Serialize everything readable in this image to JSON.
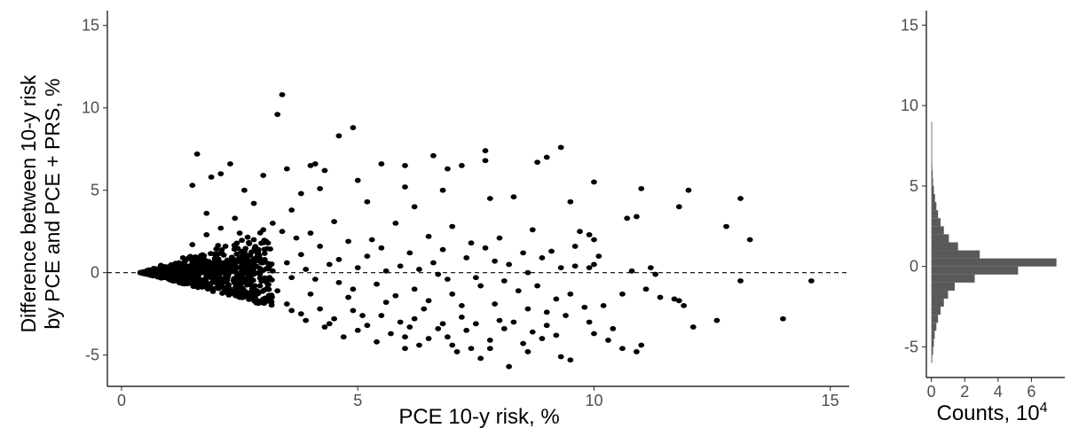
{
  "chart_data": [
    {
      "type": "scatter",
      "title": "",
      "xlabel": "PCE 10-y risk, %",
      "ylabel_lines": [
        "Difference between 10-y risk",
        "by PCE and PCE + PRS, %"
      ],
      "xlim": [
        -0.3,
        15.4
      ],
      "ylim": [
        -6.9,
        15.9
      ],
      "x_ticks": [
        0,
        5,
        10,
        15
      ],
      "y_ticks": [
        -5,
        0,
        5,
        10,
        15
      ],
      "grid": false,
      "reference_line": {
        "y": 0,
        "style": "dashed"
      },
      "point_color": "#000000",
      "cluster": {
        "description_of_dense_region": "many points fanning from x~0.4,y~0",
        "x_range": [
          0.4,
          3.2
        ]
      },
      "points": [
        [
          3.4,
          10.8
        ],
        [
          3.3,
          9.6
        ],
        [
          4.9,
          8.8
        ],
        [
          4.6,
          8.3
        ],
        [
          9.3,
          7.6
        ],
        [
          7.7,
          7.4
        ],
        [
          1.6,
          7.2
        ],
        [
          6.6,
          7.1
        ],
        [
          7.7,
          6.8
        ],
        [
          8.8,
          6.7
        ],
        [
          9.0,
          7.0
        ],
        [
          4.0,
          6.5
        ],
        [
          4.1,
          6.6
        ],
        [
          2.3,
          6.6
        ],
        [
          5.5,
          6.6
        ],
        [
          6.0,
          6.5
        ],
        [
          7.2,
          6.5
        ],
        [
          6.9,
          6.3
        ],
        [
          4.3,
          6.2
        ],
        [
          3.5,
          6.3
        ],
        [
          2.1,
          6.0
        ],
        [
          1.9,
          5.8
        ],
        [
          10.0,
          5.5
        ],
        [
          11.0,
          5.1
        ],
        [
          12.0,
          5.0
        ],
        [
          3.0,
          5.9
        ],
        [
          5.0,
          5.6
        ],
        [
          4.2,
          5.1
        ],
        [
          1.5,
          5.3
        ],
        [
          6.0,
          5.2
        ],
        [
          6.8,
          5.0
        ],
        [
          2.6,
          5.0
        ],
        [
          3.8,
          4.8
        ],
        [
          7.8,
          4.5
        ],
        [
          8.3,
          4.6
        ],
        [
          13.1,
          4.5
        ],
        [
          9.5,
          4.3
        ],
        [
          11.8,
          4.0
        ],
        [
          2.8,
          4.2
        ],
        [
          5.2,
          4.3
        ],
        [
          6.2,
          4.0
        ],
        [
          3.6,
          3.8
        ],
        [
          10.7,
          3.3
        ],
        [
          10.9,
          3.4
        ],
        [
          12.8,
          2.8
        ],
        [
          9.7,
          2.5
        ],
        [
          13.3,
          2.0
        ],
        [
          9.9,
          2.3
        ],
        [
          10.0,
          2.0
        ],
        [
          8.7,
          2.6
        ],
        [
          7.0,
          2.8
        ],
        [
          5.8,
          3.0
        ],
        [
          4.5,
          3.1
        ],
        [
          3.2,
          3.0
        ],
        [
          2.4,
          3.3
        ],
        [
          1.8,
          3.6
        ],
        [
          6.5,
          2.2
        ],
        [
          8.0,
          2.1
        ],
        [
          9.6,
          1.6
        ],
        [
          9.1,
          1.3
        ],
        [
          5.3,
          2.0
        ],
        [
          4.0,
          2.4
        ],
        [
          3.4,
          2.5
        ],
        [
          7.4,
          1.8
        ],
        [
          8.5,
          1.2
        ],
        [
          10.1,
          1.0
        ],
        [
          10.0,
          0.5
        ],
        [
          9.9,
          0.3
        ],
        [
          11.2,
          0.3
        ],
        [
          9.6,
          0.4
        ],
        [
          9.3,
          0.3
        ],
        [
          10.8,
          0.1
        ],
        [
          13.1,
          -0.5
        ],
        [
          14.6,
          -0.5
        ],
        [
          11.3,
          -0.1
        ],
        [
          8.6,
          0.0
        ],
        [
          7.9,
          0.7
        ],
        [
          6.6,
          0.6
        ],
        [
          6.3,
          0.2
        ],
        [
          5.2,
          1.0
        ],
        [
          4.6,
          0.8
        ],
        [
          3.8,
          1.1
        ],
        [
          2.9,
          1.4
        ],
        [
          2.2,
          1.6
        ],
        [
          1.5,
          1.7
        ],
        [
          6.9,
          -0.4
        ],
        [
          7.6,
          -0.8
        ],
        [
          8.4,
          -1.1
        ],
        [
          9.5,
          -1.3
        ],
        [
          11.1,
          -1.0
        ],
        [
          11.7,
          -1.6
        ],
        [
          11.8,
          -1.7
        ],
        [
          11.9,
          -2.0
        ],
        [
          12.1,
          -3.3
        ],
        [
          12.6,
          -2.9
        ],
        [
          14.0,
          -2.8
        ],
        [
          9.8,
          -2.1
        ],
        [
          9.0,
          -2.4
        ],
        [
          8.0,
          -2.9
        ],
        [
          7.2,
          -2.7
        ],
        [
          6.4,
          -2.2
        ],
        [
          5.6,
          -1.8
        ],
        [
          4.8,
          -1.5
        ],
        [
          4.0,
          -1.3
        ],
        [
          3.3,
          -1.1
        ],
        [
          2.8,
          -1.2
        ],
        [
          2.2,
          -0.9
        ],
        [
          1.6,
          -0.6
        ],
        [
          1.0,
          -0.4
        ],
        [
          5.1,
          -2.6
        ],
        [
          5.9,
          -3.0
        ],
        [
          6.7,
          -3.4
        ],
        [
          7.3,
          -3.5
        ],
        [
          8.1,
          -3.4
        ],
        [
          8.7,
          -3.6
        ],
        [
          9.2,
          -3.8
        ],
        [
          10.0,
          -3.7
        ],
        [
          10.3,
          -4.1
        ],
        [
          10.6,
          -4.6
        ],
        [
          10.9,
          -4.8
        ],
        [
          11.0,
          -4.4
        ],
        [
          9.3,
          -5.1
        ],
        [
          9.5,
          -5.3
        ],
        [
          8.2,
          -5.7
        ],
        [
          7.6,
          -5.2
        ],
        [
          6.0,
          -4.6
        ],
        [
          6.3,
          -4.4
        ],
        [
          5.4,
          -4.2
        ],
        [
          4.7,
          -3.9
        ],
        [
          4.3,
          -3.3
        ],
        [
          3.9,
          -2.9
        ],
        [
          7.0,
          -4.4
        ],
        [
          7.1,
          -4.8
        ],
        [
          8.9,
          -4.0
        ],
        [
          5.7,
          -3.7
        ],
        [
          6.9,
          -3.9
        ],
        [
          3.6,
          -2.3
        ],
        [
          4.5,
          -2.8
        ],
        [
          8.5,
          -4.3
        ],
        [
          7.8,
          -4.1
        ],
        [
          6.1,
          -3.3
        ],
        [
          5.0,
          -3.5
        ],
        [
          7.4,
          -4.6
        ],
        [
          2.8,
          2.0
        ],
        [
          3.1,
          1.8
        ],
        [
          3.7,
          2.1
        ],
        [
          4.2,
          1.6
        ],
        [
          4.8,
          1.9
        ],
        [
          5.5,
          1.5
        ],
        [
          6.1,
          1.2
        ],
        [
          6.8,
          1.4
        ],
        [
          7.3,
          0.9
        ],
        [
          7.7,
          1.5
        ],
        [
          8.2,
          0.5
        ],
        [
          8.9,
          0.9
        ],
        [
          5.9,
          0.4
        ],
        [
          5.0,
          0.3
        ],
        [
          4.4,
          0.5
        ],
        [
          3.9,
          0.2
        ],
        [
          3.5,
          0.6
        ],
        [
          2.6,
          0.8
        ],
        [
          2.0,
          1.0
        ],
        [
          1.3,
          0.9
        ],
        [
          1.8,
          2.3
        ],
        [
          2.1,
          2.7
        ],
        [
          2.5,
          2.4
        ],
        [
          3.0,
          2.6
        ],
        [
          5.6,
          0.1
        ],
        [
          6.7,
          -0.1
        ],
        [
          7.5,
          -0.3
        ],
        [
          8.1,
          -0.5
        ],
        [
          8.8,
          -0.8
        ],
        [
          9.2,
          -1.6
        ],
        [
          7.0,
          -1.3
        ],
        [
          6.2,
          -1.0
        ],
        [
          5.4,
          -0.7
        ],
        [
          4.6,
          -0.6
        ],
        [
          4.1,
          -0.4
        ],
        [
          3.6,
          -0.3
        ],
        [
          3.2,
          0.1
        ],
        [
          2.7,
          -0.2
        ],
        [
          2.4,
          0.3
        ],
        [
          1.9,
          0.1
        ],
        [
          1.4,
          0.2
        ],
        [
          4.9,
          -1.0
        ],
        [
          5.8,
          -1.4
        ],
        [
          6.5,
          -1.7
        ],
        [
          7.2,
          -2.0
        ],
        [
          7.9,
          -1.9
        ],
        [
          8.6,
          -2.2
        ],
        [
          9.4,
          -2.6
        ],
        [
          10.2,
          -2.0
        ],
        [
          10.6,
          -1.3
        ],
        [
          11.4,
          -1.5
        ],
        [
          3.0,
          -1.6
        ],
        [
          3.5,
          -1.9
        ],
        [
          4.2,
          -2.2
        ],
        [
          4.9,
          -2.3
        ],
        [
          5.5,
          -2.6
        ],
        [
          6.2,
          -2.8
        ],
        [
          6.8,
          -3.1
        ],
        [
          7.5,
          -3.1
        ],
        [
          8.3,
          -3.0
        ],
        [
          9.0,
          -3.2
        ],
        [
          9.9,
          -3.0
        ],
        [
          10.4,
          -3.4
        ],
        [
          2.5,
          -1.5
        ],
        [
          3.8,
          -2.5
        ],
        [
          4.4,
          -3.1
        ],
        [
          5.2,
          -3.2
        ],
        [
          6.5,
          -4.0
        ],
        [
          7.8,
          -4.6
        ],
        [
          8.6,
          -4.8
        ],
        [
          6.0,
          -3.9
        ]
      ]
    },
    {
      "type": "bar",
      "orientation": "horizontal",
      "xlabel": "Counts, 10",
      "xlabel_superscript": "4",
      "ylim": [
        -6.9,
        15.9
      ],
      "y_ticks": [
        -5,
        0,
        5,
        10,
        15
      ],
      "x_ticks": [
        0,
        2,
        4,
        6
      ],
      "xlim": [
        -0.3,
        8.0
      ],
      "bin_width": 0.5,
      "bar_color": "#595959",
      "bins": [
        [
          -5.75,
          0.05
        ],
        [
          -5.25,
          0.1
        ],
        [
          -4.75,
          0.15
        ],
        [
          -4.25,
          0.2
        ],
        [
          -3.75,
          0.3
        ],
        [
          -3.25,
          0.4
        ],
        [
          -2.75,
          0.55
        ],
        [
          -2.25,
          0.75
        ],
        [
          -1.75,
          1.0
        ],
        [
          -1.25,
          1.4
        ],
        [
          -0.75,
          2.6
        ],
        [
          -0.25,
          5.2
        ],
        [
          0.25,
          7.5
        ],
        [
          0.75,
          2.9
        ],
        [
          1.25,
          1.6
        ],
        [
          1.75,
          1.05
        ],
        [
          2.25,
          0.75
        ],
        [
          2.75,
          0.55
        ],
        [
          3.25,
          0.4
        ],
        [
          3.75,
          0.3
        ],
        [
          4.25,
          0.22
        ],
        [
          4.75,
          0.15
        ],
        [
          5.25,
          0.1
        ],
        [
          5.75,
          0.08
        ],
        [
          6.25,
          0.05
        ],
        [
          6.75,
          0.04
        ],
        [
          7.25,
          0.03
        ],
        [
          7.75,
          0.02
        ],
        [
          8.25,
          0.015
        ],
        [
          8.75,
          0.01
        ]
      ]
    }
  ]
}
